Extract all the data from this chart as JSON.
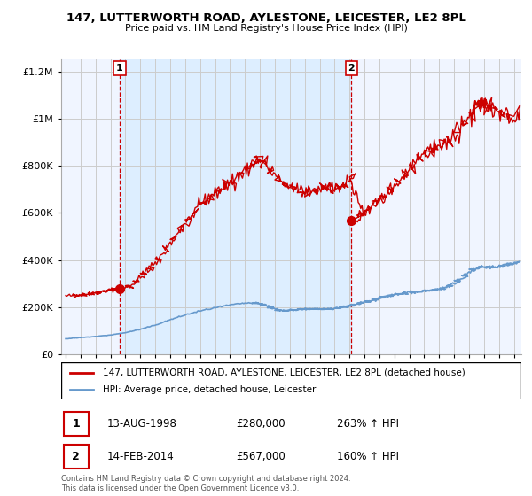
{
  "title": "147, LUTTERWORTH ROAD, AYLESTONE, LEICESTER, LE2 8PL",
  "subtitle": "Price paid vs. HM Land Registry's House Price Index (HPI)",
  "property_label": "147, LUTTERWORTH ROAD, AYLESTONE, LEICESTER, LE2 8PL (detached house)",
  "hpi_label": "HPI: Average price, detached house, Leicester",
  "sale1_date": "13-AUG-1998",
  "sale1_price": "£280,000",
  "sale1_hpi": "263% ↑ HPI",
  "sale2_date": "14-FEB-2014",
  "sale2_price": "£567,000",
  "sale2_hpi": "160% ↑ HPI",
  "footnote": "Contains HM Land Registry data © Crown copyright and database right 2024.\nThis data is licensed under the Open Government Licence v3.0.",
  "sale1_x": 1998.617,
  "sale1_y": 280000,
  "sale2_x": 2014.12,
  "sale2_y": 567000,
  "property_color": "#cc0000",
  "hpi_color": "#6699cc",
  "vline_color": "#cc0000",
  "grid_color": "#cccccc",
  "shade_color": "#ddeeff",
  "background_color": "#ffffff",
  "plot_bg_color": "#f0f5ff",
  "ylim": [
    0,
    1250000
  ],
  "xlim_start": 1994.7,
  "xlim_end": 2025.5
}
